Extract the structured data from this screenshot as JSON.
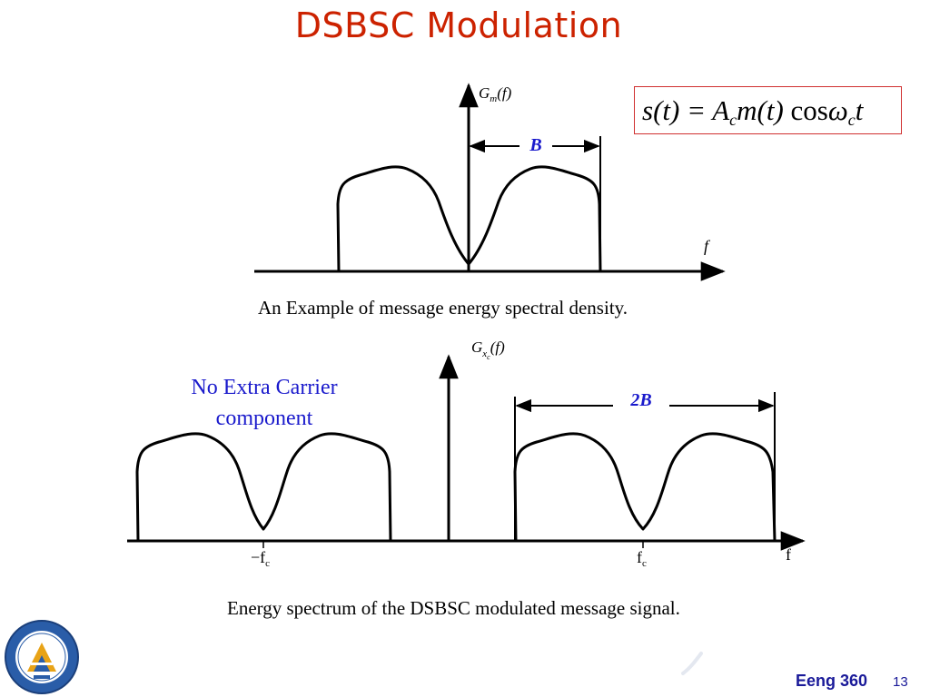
{
  "slide": {
    "title": "DSBSC Modulation",
    "formula": {
      "lhs": "s(t) =",
      "amp": "A",
      "amp_sub": "c",
      "msg": "m(t)",
      "cos": "cos",
      "omega": "ω",
      "omega_sub": "c",
      "var": "t"
    },
    "top_figure": {
      "y_axis_label": "G",
      "y_axis_sub": "m",
      "y_axis_arg": "(f)",
      "x_axis_label": "f",
      "bandwidth_label": "B",
      "caption": "An Example of message energy spectral density."
    },
    "bottom_figure": {
      "y_axis_label": "G",
      "y_axis_sub": "x",
      "y_axis_subsub": "c",
      "y_axis_arg": "(f)",
      "x_axis_label": "f",
      "neg_tick": "−f",
      "neg_tick_sub": "c",
      "pos_tick": "f",
      "pos_tick_sub": "c",
      "bandwidth_label": "2B",
      "note": [
        "No Extra Carrier",
        "component"
      ],
      "caption": "Energy spectrum of the DSBSC modulated message signal."
    },
    "footer": {
      "course": "Eeng 360",
      "page": "13"
    },
    "colors": {
      "title": "#cc2200",
      "note": "#1a1acc",
      "bandwidth_label": "#1a1acc",
      "footer": "#1a1a99",
      "formula_border": "#d03030"
    }
  }
}
